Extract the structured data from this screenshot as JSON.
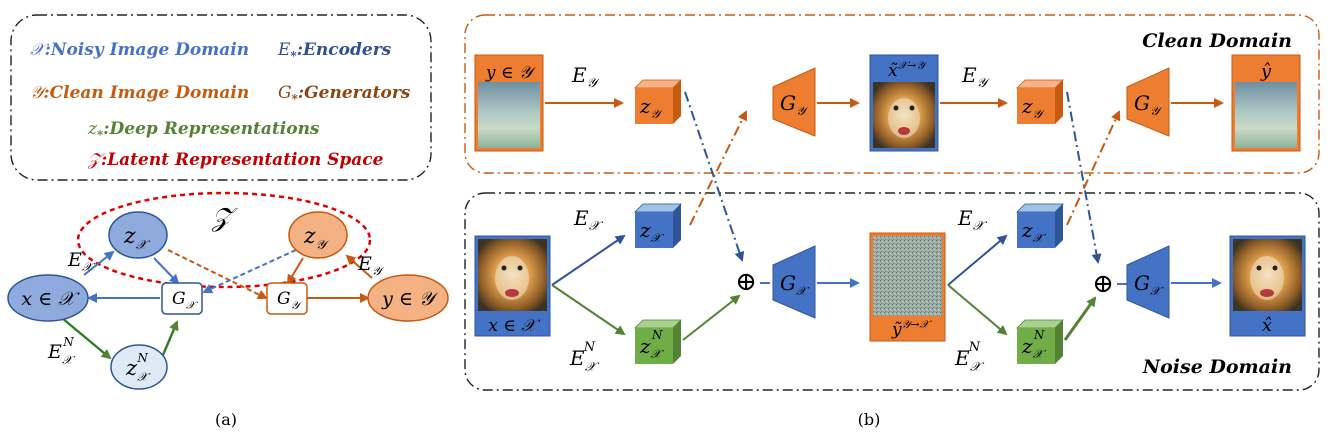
{
  "colors": {
    "noisy": "#4472c4",
    "clean": "#ed7d31",
    "deep": "#70ad47",
    "latent": "#c00000",
    "encoders": "#2f4f8f",
    "generators": "#8b4513"
  },
  "legend": {
    "x_sym": "𝒳",
    "x_text": ":Noisy Image Domain",
    "y_sym": "𝒴",
    "y_text": ":Clean Image Domain",
    "e_sym": "E",
    "e_sub": "*",
    "e_text": ":Encoders",
    "g_sym": "G",
    "g_sub": "*",
    "g_text": ":Generators",
    "z_sym": "z",
    "z_sub": "*",
    "z_text": ":Deep Representations",
    "zc_sym": "𝒵",
    "zc_text": ":Latent Representation Space"
  },
  "graph_a": {
    "latent_label": "𝒵",
    "zx": "z",
    "zx_sub": "𝒳",
    "zy": "z",
    "zy_sub": "𝒴",
    "x_node": "x ∈ 𝒳",
    "y_node": "y ∈ 𝒴",
    "gx": "G",
    "gx_sub": "𝒳",
    "gy": "G",
    "gy_sub": "𝒴",
    "zn": "z",
    "zn_sub": "𝒳",
    "zn_sup": "N",
    "ex": "E",
    "ex_sub": "𝒳",
    "ey": "E",
    "ey_sub": "𝒴",
    "exn": "E",
    "exn_sub": "𝒳",
    "exn_sup": "N"
  },
  "panel_b": {
    "clean_domain": "Clean Domain",
    "noise_domain": "Noise Domain",
    "y_in": "y ∈ 𝒴",
    "x_in": "x ∈ 𝒳",
    "x_to_y": "x̃",
    "x_to_y_sup": "𝒳→𝒴",
    "y_to_x": "ỹ",
    "y_to_x_sup": "𝒴→𝒳",
    "y_hat": "ŷ",
    "x_hat": "x̂",
    "E": "E",
    "G": "G",
    "z": "z",
    "sub_x": "𝒳",
    "sub_y": "𝒴",
    "sup_n": "N",
    "oplus": "⊕"
  },
  "captions": {
    "a": "(a)",
    "b": "(b)"
  }
}
